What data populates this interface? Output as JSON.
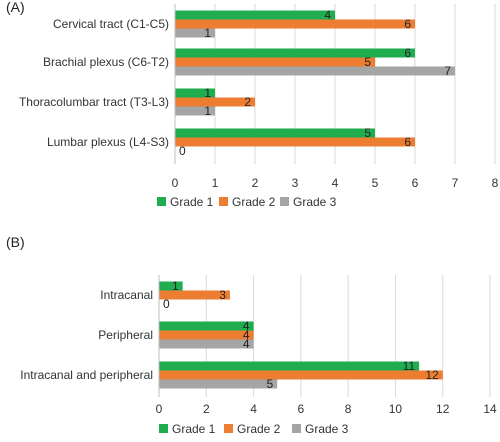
{
  "colors": {
    "grade1": "#1fad4f",
    "grade2": "#ed7d31",
    "grade3": "#a5a5a5",
    "grid": "#d9d9d9"
  },
  "chart_data": [
    {
      "panel_label": "(A)",
      "type": "bar",
      "orientation": "horizontal",
      "categories": [
        "Cervical tract (C1-C5)",
        "Brachial plexus (C6-T2)",
        "Thoracolumbar tract (T3-L3)",
        "Lumbar plexus (L4-S3)"
      ],
      "series": [
        {
          "name": "Grade 1",
          "values": [
            4,
            6,
            1,
            5
          ]
        },
        {
          "name": "Grade 2",
          "values": [
            6,
            5,
            2,
            6
          ]
        },
        {
          "name": "Grade 3",
          "values": [
            1,
            7,
            1,
            0
          ]
        }
      ],
      "xlim": [
        0,
        8
      ],
      "xticks": [
        "0",
        "1",
        "2",
        "3",
        "4",
        "5",
        "6",
        "7",
        "8"
      ],
      "grid": true,
      "legend": "bottom"
    },
    {
      "panel_label": "(B)",
      "type": "bar",
      "orientation": "horizontal",
      "categories": [
        "Intracanal",
        "Peripheral",
        "Intracanal and peripheral"
      ],
      "series": [
        {
          "name": "Grade 1",
          "values": [
            1,
            4,
            11
          ]
        },
        {
          "name": "Grade 2",
          "values": [
            3,
            4,
            12
          ]
        },
        {
          "name": "Grade 3",
          "values": [
            0,
            4,
            5
          ]
        }
      ],
      "xlim": [
        0,
        14
      ],
      "xticks": [
        "0",
        "2",
        "4",
        "6",
        "8",
        "10",
        "12",
        "14"
      ],
      "grid": true,
      "legend": "bottom"
    }
  ]
}
